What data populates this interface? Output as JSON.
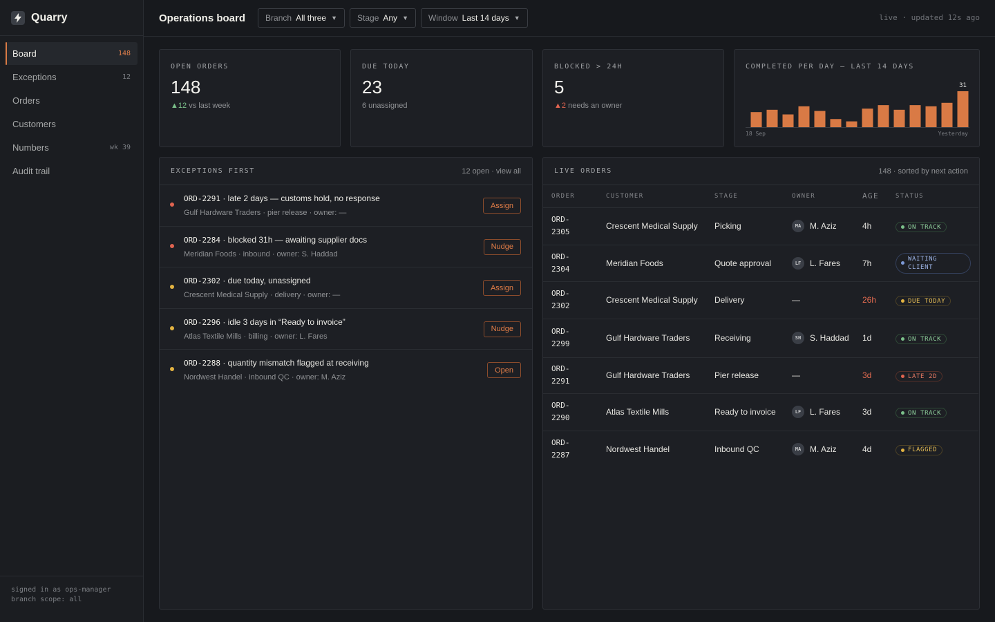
{
  "brand": {
    "name": "Quarry",
    "icon": "bolt-icon"
  },
  "nav": [
    {
      "label": "Board",
      "count": "148",
      "active": true
    },
    {
      "label": "Exceptions",
      "count": "12"
    },
    {
      "label": "Orders",
      "count": ""
    },
    {
      "label": "Customers",
      "count": ""
    },
    {
      "label": "Numbers",
      "count": "wk 39"
    },
    {
      "label": "Audit trail",
      "count": ""
    }
  ],
  "footer": {
    "line1": "signed in as ops-manager",
    "line2": "branch scope: all"
  },
  "header": {
    "title": "Operations board",
    "filters": [
      {
        "label": "Branch",
        "value": "All three"
      },
      {
        "label": "Stage",
        "value": "Any"
      },
      {
        "label": "Window",
        "value": "Last 14 days"
      }
    ],
    "live": "live · updated 12s ago"
  },
  "kpis": [
    {
      "label": "OPEN ORDERS",
      "value": "148",
      "delta": "12",
      "delta_text": "vs last week"
    },
    {
      "label": "DUE TODAY",
      "value": "23",
      "sub": "6 unassigned"
    },
    {
      "label": "BLOCKED > 24H",
      "value": "5",
      "delta": "2",
      "delta_text": "needs an owner"
    }
  ],
  "chart_data": {
    "type": "bar",
    "title": "COMPLETED PER DAY — LAST 14 DAYS",
    "x_start_label": "18 Sep",
    "x_end_label": "Yesterday",
    "values": [
      13,
      15,
      11,
      18,
      14,
      7,
      5,
      16,
      19,
      15,
      19,
      18,
      21,
      31
    ],
    "value_label": "31",
    "ylim": [
      0,
      31
    ],
    "bar_color": "#d97a45"
  },
  "exceptions": {
    "title": "EXCEPTIONS FIRST",
    "meta": "12 open · view all",
    "items": [
      {
        "id": "ORD-2291",
        "text": " · late 2 days — customs hold, no response",
        "sub": "Gulf Hardware Traders · pier release · owner: —",
        "action": "Assign",
        "severity": "red"
      },
      {
        "id": "ORD-2284",
        "text": " · blocked 31h — awaiting supplier docs",
        "sub": "Meridian Foods · inbound · owner: S. Haddad",
        "action": "Nudge",
        "severity": "red"
      },
      {
        "id": "ORD-2302",
        "text": " · due today, unassigned",
        "sub": "Crescent Medical Supply · delivery · owner: —",
        "action": "Assign",
        "severity": "yellow"
      },
      {
        "id": "ORD-2296",
        "text": " · idle 3 days in “Ready to invoice”",
        "sub": "Atlas Textile Mills · billing · owner: L. Fares",
        "action": "Nudge",
        "severity": "yellow"
      },
      {
        "id": "ORD-2288",
        "text": " · quantity mismatch flagged at receiving",
        "sub": "Nordwest Handel · inbound QC · owner: M. Aziz",
        "action": "Open",
        "severity": "yellow"
      }
    ]
  },
  "orders": {
    "title": "LIVE ORDERS",
    "meta": "148 · sorted by next action",
    "columns": [
      "ORDER",
      "CUSTOMER",
      "STAGE",
      "OWNER",
      "AGE",
      "STATUS"
    ],
    "rows": [
      {
        "order": "ORD-\n2305",
        "customer": "Crescent Medical Supply",
        "stage": "Picking",
        "initials": "MA",
        "owner": "M. Aziz",
        "age": "4h",
        "status": "ON TRACK",
        "tone": "green"
      },
      {
        "order": "ORD-\n2304",
        "customer": "Meridian Foods",
        "stage": "Quote approval",
        "initials": "LF",
        "owner": "L. Fares",
        "age": "7h",
        "status": "WAITING CLIENT",
        "tone": "blue"
      },
      {
        "order": "ORD-\n2302",
        "customer": "Crescent Medical Supply",
        "stage": "Delivery",
        "initials": "",
        "owner": "—",
        "age": "26h",
        "status": "DUE TODAY",
        "tone": "yellow",
        "age_warn": true
      },
      {
        "order": "ORD-\n2299",
        "customer": "Gulf Hardware Traders",
        "stage": "Receiving",
        "initials": "SH",
        "owner": "S. Haddad",
        "age": "1d",
        "status": "ON TRACK",
        "tone": "green"
      },
      {
        "order": "ORD-\n2291",
        "customer": "Gulf Hardware Traders",
        "stage": "Pier release",
        "initials": "",
        "owner": "—",
        "age": "3d",
        "status": "LATE 2D",
        "tone": "red",
        "age_warn": true
      },
      {
        "order": "ORD-\n2290",
        "customer": "Atlas Textile Mills",
        "stage": "Ready to invoice",
        "initials": "LF",
        "owner": "L. Fares",
        "age": "3d",
        "status": "ON TRACK",
        "tone": "green"
      },
      {
        "order": "ORD-\n2287",
        "customer": "Nordwest Handel",
        "stage": "Inbound QC",
        "initials": "MA",
        "owner": "M. Aziz",
        "age": "4d",
        "status": "FLAGGED",
        "tone": "yellow"
      }
    ]
  },
  "colors": {
    "accent": "#d97a45",
    "green": "#7bc08a",
    "red": "#e06450",
    "yellow": "#e3b341",
    "blue": "#7e9ad6"
  }
}
